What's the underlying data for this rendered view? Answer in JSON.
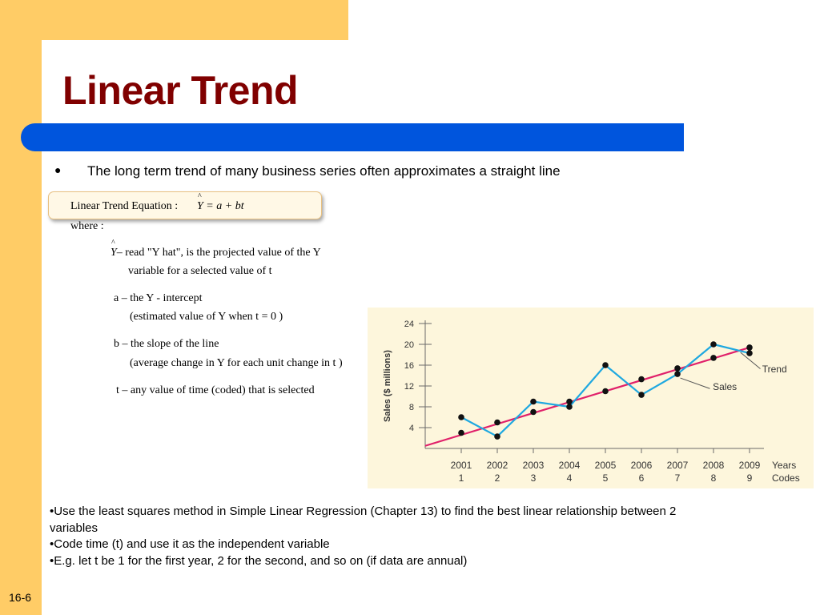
{
  "slide": {
    "title": "Linear Trend",
    "bullet_symbol": "●",
    "bullet_text": "The long term trend of many business series often approximates a straight line",
    "slide_number": "16-6"
  },
  "equation": {
    "label": "Linear Trend Equation :",
    "lhs": "Y",
    "rhs": "= a + bt"
  },
  "definitions": {
    "where": "where :",
    "yhat_var": "Y",
    "yhat_line1": "– read \"Y hat\", is the projected value of the Y",
    "yhat_line2": "variable for a selected value of t",
    "a_line1": "a – the Y - intercept",
    "a_line2": "(estimated value of Y when  t = 0 )",
    "b_line1": "b – the slope of the line",
    "b_line2": "(average change in Y for each unit change in t )",
    "t_line1": "t – any value of time (coded) that is selected"
  },
  "notes": [
    "•Use the least squares method in Simple Linear Regression (Chapter 13) to find the best linear relationship between 2 variables",
    "•Code time (t) and use it as the independent variable",
    "•E.g. let t be 1 for the first year, 2 for the second, and so on (if data are annual)"
  ],
  "colors": {
    "frame": "#ffcc66",
    "title": "#800000",
    "bar": "#0055dd",
    "sales_line": "#1ea8e0",
    "trend_line": "#e0206a",
    "chart_bg": "#fdf6dc"
  },
  "chart_data": {
    "type": "line",
    "ylabel": "Sales ($ millions)",
    "yticks": [
      4,
      8,
      12,
      16,
      20,
      24
    ],
    "ylim": [
      0,
      24
    ],
    "xlim": [
      0,
      9.4
    ],
    "x_years": [
      "2001",
      "2002",
      "2003",
      "2004",
      "2005",
      "2006",
      "2007",
      "2008",
      "2009"
    ],
    "x_codes": [
      "1",
      "2",
      "3",
      "4",
      "5",
      "6",
      "7",
      "8",
      "9"
    ],
    "x_axis_label_line1": "Years",
    "x_axis_label_line2": "Codes",
    "x": [
      1,
      2,
      3,
      4,
      5,
      6,
      7,
      8,
      9
    ],
    "series": [
      {
        "name": "Sales",
        "values": [
          6,
          2.3,
          9,
          8,
          16,
          10.3,
          14.3,
          20,
          18.3
        ]
      },
      {
        "name": "Trend",
        "values": [
          3,
          5,
          7,
          9,
          11,
          13.3,
          15.4,
          17.4,
          19.4
        ]
      }
    ],
    "trend_line": {
      "x": [
        0,
        9
      ],
      "y": [
        0.5,
        19.4
      ]
    },
    "annotations": [
      {
        "text": "Trend",
        "series": "Trend"
      },
      {
        "text": "Sales",
        "series": "Sales"
      }
    ]
  }
}
